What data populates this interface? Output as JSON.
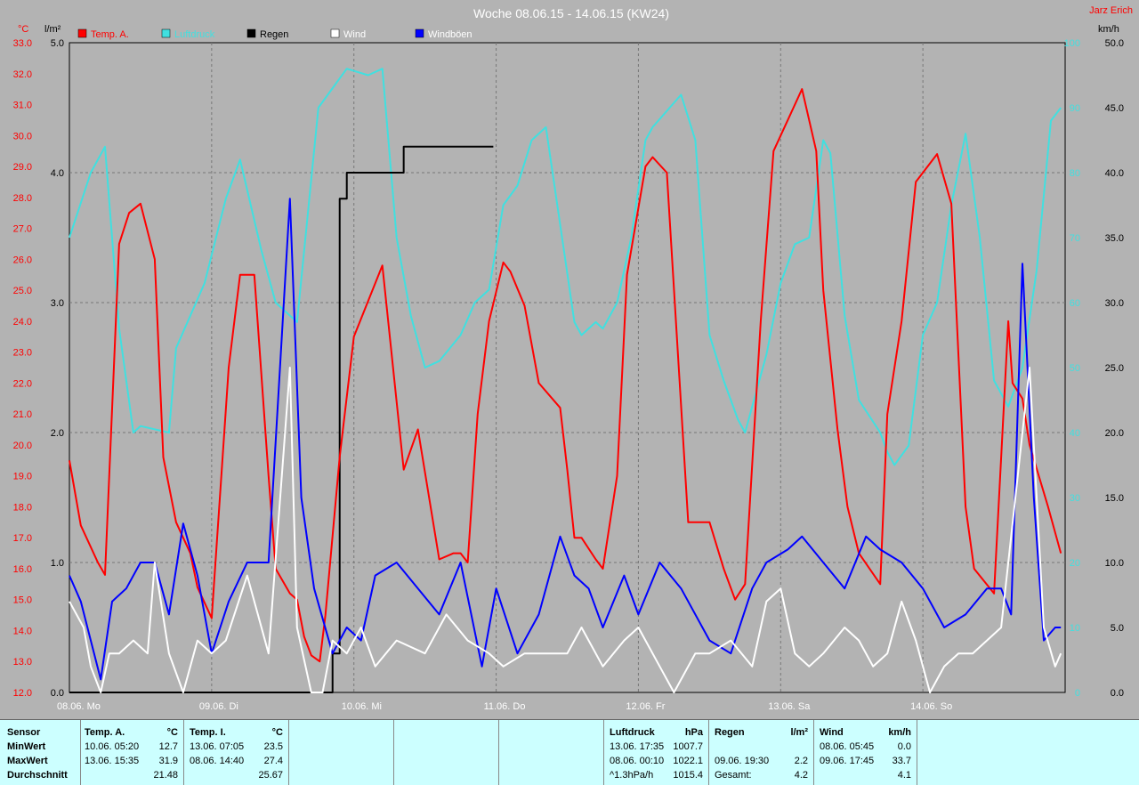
{
  "title": "Woche 08.06.15 - 14.06.15 (KW24)",
  "author": "Jarz Erich",
  "colors": {
    "temp": "#ff0000",
    "pressure": "#40e0e0",
    "rain": "#000000",
    "wind": "#ffffff",
    "gusts": "#0000ff"
  },
  "chart_data": {
    "type": "line",
    "title": "Woche 08.06.15 - 14.06.15 (KW24)",
    "axes": {
      "left_temp": {
        "unit": "°C",
        "range": [
          12.0,
          33.0
        ],
        "ticks": [
          "12.0",
          "13.0",
          "14.0",
          "15.0",
          "16.0",
          "17.0",
          "18.0",
          "19.0",
          "20.0",
          "21.0",
          "22.0",
          "23.0",
          "24.0",
          "25.0",
          "26.0",
          "27.0",
          "28.0",
          "29.0",
          "30.0",
          "31.0",
          "32.0",
          "33.0"
        ]
      },
      "left_rain": {
        "unit": "l/m²",
        "range": [
          0.0,
          5.0
        ],
        "ticks": [
          "0.0",
          "1.0",
          "2.0",
          "3.0",
          "4.0",
          "5.0"
        ]
      },
      "right_pressure": {
        "unit": "",
        "range": [
          0,
          100
        ],
        "ticks": [
          "0",
          "10",
          "20",
          "30",
          "40",
          "50",
          "60",
          "70",
          "80",
          "90",
          "100"
        ]
      },
      "right_wind": {
        "unit": "km/h",
        "range": [
          0.0,
          50.0
        ],
        "ticks": [
          "0.0",
          "5.0",
          "10.0",
          "15.0",
          "20.0",
          "25.0",
          "30.0",
          "35.0",
          "40.0",
          "45.0",
          "50.0"
        ]
      }
    },
    "x_range": [
      0,
      7
    ],
    "x_ticks": [
      "08.06.  Mo",
      "09.06.  Di",
      "10.06.  Mi",
      "11.06.  Do",
      "12.06.  Fr",
      "13.06.  Sa",
      "14.06.  So"
    ],
    "grid": true,
    "series": [
      {
        "name": "Temp. A.",
        "axis": "left_temp",
        "color": "#ff0000",
        "x": [
          0,
          0.08,
          0.2,
          0.25,
          0.35,
          0.42,
          0.5,
          0.6,
          0.66,
          0.75,
          0.8,
          0.85,
          0.9,
          1.0,
          1.12,
          1.2,
          1.3,
          1.4,
          1.45,
          1.55,
          1.6,
          1.65,
          1.7,
          1.76,
          1.8,
          1.9,
          2.0,
          2.2,
          2.35,
          2.45,
          2.6,
          2.7,
          2.75,
          2.8,
          2.87,
          2.95,
          3.05,
          3.1,
          3.2,
          3.3,
          3.45,
          3.5,
          3.55,
          3.6,
          3.7,
          3.75,
          3.85,
          3.92,
          4.05,
          4.1,
          4.2,
          4.35,
          4.5,
          4.6,
          4.68,
          4.75,
          4.86,
          4.95,
          5.05,
          5.15,
          5.25,
          5.3,
          5.4,
          5.47,
          5.55,
          5.7,
          5.75,
          5.85,
          5.95,
          6.1,
          6.2,
          6.3,
          6.36,
          6.5,
          6.6,
          6.63,
          6.7,
          6.75,
          6.88,
          6.97
        ],
        "y": [
          19.5,
          17.4,
          16.2,
          15.8,
          26.5,
          27.5,
          27.8,
          26.0,
          19.6,
          17.5,
          17.0,
          16.5,
          15.4,
          14.4,
          22.5,
          25.5,
          25.5,
          19.0,
          16.0,
          15.2,
          15.0,
          13.8,
          13.2,
          13.0,
          14.5,
          19.6,
          23.5,
          25.8,
          19.2,
          20.5,
          16.3,
          16.5,
          16.5,
          16.2,
          21.0,
          24.0,
          25.9,
          25.6,
          24.5,
          22.0,
          21.2,
          19.2,
          17.0,
          17.0,
          16.3,
          16.0,
          19.0,
          25.5,
          29.0,
          29.3,
          28.8,
          17.5,
          17.5,
          16.0,
          15.0,
          15.5,
          24.0,
          29.5,
          30.5,
          31.5,
          29.5,
          25.0,
          20.5,
          18.0,
          16.5,
          15.5,
          21.0,
          24.0,
          28.5,
          29.4,
          27.8,
          18.0,
          16.0,
          15.2,
          24.0,
          22.0,
          21.5,
          20.0,
          18.0,
          16.5
        ]
      },
      {
        "name": "Luftdruck",
        "axis": "right_pressure",
        "color": "#40e0e0",
        "x": [
          0,
          0.15,
          0.25,
          0.35,
          0.45,
          0.5,
          0.7,
          0.75,
          0.95,
          1.1,
          1.2,
          1.35,
          1.45,
          1.6,
          1.75,
          1.85,
          1.95,
          2.1,
          2.2,
          2.3,
          2.4,
          2.5,
          2.6,
          2.75,
          2.85,
          2.95,
          3.05,
          3.15,
          3.25,
          3.35,
          3.45,
          3.55,
          3.6,
          3.7,
          3.75,
          3.85,
          3.95,
          4.05,
          4.1,
          4.3,
          4.4,
          4.5,
          4.6,
          4.7,
          4.75,
          4.9,
          5.0,
          5.1,
          5.2,
          5.3,
          5.35,
          5.45,
          5.55,
          5.7,
          5.75,
          5.8,
          5.9,
          6.0,
          6.1,
          6.2,
          6.3,
          6.4,
          6.5,
          6.6,
          6.7,
          6.8,
          6.9,
          6.97
        ],
        "y": [
          70,
          80,
          84,
          56,
          40,
          41,
          40,
          53,
          63,
          76,
          82,
          68,
          60,
          57,
          90,
          93,
          96,
          95,
          96,
          70,
          58,
          50,
          51,
          55,
          60,
          62,
          75,
          78,
          85,
          87,
          72,
          57,
          55,
          57,
          56,
          60,
          70,
          85,
          87,
          92,
          85,
          55,
          48,
          42,
          40,
          52,
          63,
          69,
          70,
          85,
          83,
          58,
          45,
          40,
          37,
          35,
          38,
          55,
          60,
          75,
          86,
          70,
          48,
          44,
          50,
          65,
          88,
          90
        ]
      },
      {
        "name": "Regen",
        "axis": "left_rain",
        "color": "#000000",
        "style": "step",
        "x": [
          0,
          1.8,
          1.85,
          1.9,
          1.95,
          2.0,
          2.05,
          2.3,
          2.35,
          2.98
        ],
        "y": [
          0,
          0,
          0.3,
          3.8,
          4.0,
          4.0,
          4.0,
          4.0,
          4.2,
          4.2
        ]
      },
      {
        "name": "Wind",
        "axis": "right_wind",
        "color": "#ffffff",
        "x": [
          0,
          0.1,
          0.15,
          0.22,
          0.28,
          0.35,
          0.45,
          0.55,
          0.6,
          0.7,
          0.8,
          0.9,
          1.0,
          1.1,
          1.25,
          1.4,
          1.55,
          1.6,
          1.7,
          1.78,
          1.85,
          1.95,
          2.05,
          2.15,
          2.3,
          2.5,
          2.65,
          2.8,
          2.95,
          3.05,
          3.2,
          3.35,
          3.5,
          3.6,
          3.75,
          3.9,
          4.0,
          4.15,
          4.25,
          4.4,
          4.5,
          4.65,
          4.8,
          4.9,
          5.0,
          5.1,
          5.2,
          5.3,
          5.45,
          5.55,
          5.65,
          5.75,
          5.85,
          5.95,
          6.05,
          6.15,
          6.25,
          6.35,
          6.45,
          6.55,
          6.65,
          6.75,
          6.85,
          6.93,
          6.97
        ],
        "y": [
          7,
          5,
          2,
          0,
          3,
          3,
          4,
          3,
          10,
          3,
          0,
          4,
          3,
          4,
          9,
          3,
          25,
          5,
          0,
          0,
          4,
          3,
          5,
          2,
          4,
          3,
          6,
          4,
          3,
          2,
          3,
          3,
          3,
          5,
          2,
          4,
          5,
          2,
          0,
          3,
          3,
          4,
          2,
          7,
          8,
          3,
          2,
          3,
          5,
          4,
          2,
          3,
          7,
          4,
          0,
          2,
          3,
          3,
          4,
          5,
          15,
          25,
          5,
          2,
          3
        ]
      },
      {
        "name": "Windböen",
        "axis": "right_wind",
        "color": "#0000ff",
        "x": [
          0,
          0.08,
          0.15,
          0.22,
          0.3,
          0.4,
          0.5,
          0.6,
          0.7,
          0.8,
          0.9,
          1.0,
          1.12,
          1.25,
          1.4,
          1.55,
          1.63,
          1.72,
          1.85,
          1.95,
          2.05,
          2.15,
          2.3,
          2.45,
          2.6,
          2.75,
          2.9,
          3.0,
          3.15,
          3.3,
          3.45,
          3.55,
          3.65,
          3.75,
          3.9,
          4.0,
          4.15,
          4.3,
          4.5,
          4.65,
          4.8,
          4.9,
          5.05,
          5.15,
          5.3,
          5.45,
          5.6,
          5.7,
          5.85,
          6.0,
          6.15,
          6.3,
          6.45,
          6.55,
          6.62,
          6.7,
          6.78,
          6.85,
          6.93,
          6.97
        ],
        "y": [
          9,
          7,
          4,
          1,
          7,
          8,
          10,
          10,
          6,
          13,
          9,
          3,
          7,
          10,
          10,
          38,
          15,
          8,
          3,
          5,
          4,
          9,
          10,
          8,
          6,
          10,
          2,
          8,
          3,
          6,
          12,
          9,
          8,
          5,
          9,
          6,
          10,
          8,
          4,
          3,
          8,
          10,
          11,
          12,
          10,
          8,
          12,
          11,
          10,
          8,
          5,
          6,
          8,
          8,
          6,
          33,
          15,
          4,
          5,
          5
        ]
      }
    ]
  },
  "legend": [
    {
      "label": "Temp. A.",
      "color": "#ff0000"
    },
    {
      "label": "Luftdruck",
      "color": "#40e0e0"
    },
    {
      "label": "Regen",
      "color": "#000000"
    },
    {
      "label": "Wind",
      "color": "#ffffff"
    },
    {
      "label": "Windböen",
      "color": "#0000ff"
    }
  ],
  "stats": {
    "sensor": {
      "header": "Sensor",
      "rows": [
        "MinWert",
        "MaxWert",
        "Durchschnitt"
      ]
    },
    "temp_a": {
      "title": "Temp. A.",
      "unit": "°C",
      "rows": [
        {
          "t": "10.06.  05:20",
          "v": "12.7"
        },
        {
          "t": "13.06.  15:35",
          "v": "31.9"
        },
        {
          "t": "",
          "v": "21.48"
        }
      ]
    },
    "temp_i": {
      "title": "Temp. I.",
      "unit": "°C",
      "rows": [
        {
          "t": "13.06.  07:05",
          "v": "23.5"
        },
        {
          "t": "08.06.  14:40",
          "v": "27.4"
        },
        {
          "t": "",
          "v": "25.67"
        }
      ]
    },
    "luftdruck": {
      "title": "Luftdruck",
      "unit": "hPa",
      "rows": [
        {
          "t": "13.06.  17:35",
          "v": "1007.7"
        },
        {
          "t": "08.06.  00:10",
          "v": "1022.1"
        },
        {
          "t": "^1.3hPa/h",
          "v": "1015.4"
        }
      ]
    },
    "regen": {
      "title": "Regen",
      "unit": "l/m²",
      "rows": [
        {
          "t": "",
          "v": ""
        },
        {
          "t": "09.06.  19:30",
          "v": "2.2"
        },
        {
          "t": "Gesamt:",
          "v": "4.2"
        }
      ]
    },
    "wind": {
      "title": "Wind",
      "unit": "km/h",
      "rows": [
        {
          "t": "08.06.  05:45",
          "v": "0.0"
        },
        {
          "t": "09.06.  17:45",
          "v": "33.7"
        },
        {
          "t": "",
          "v": "4.1"
        }
      ]
    }
  }
}
